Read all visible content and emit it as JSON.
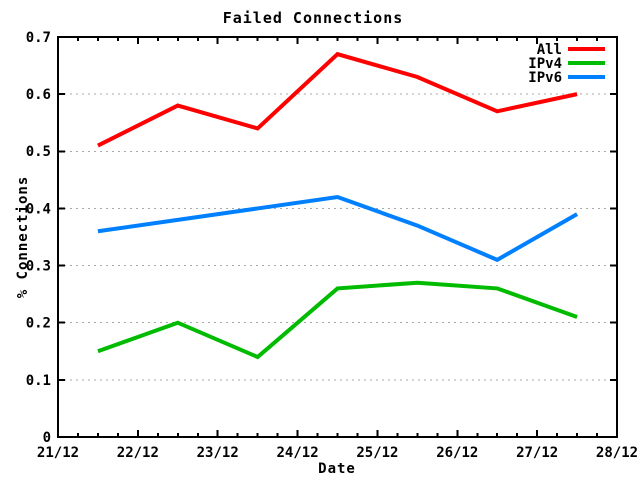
{
  "title": "Failed Connections",
  "colors": {
    "background": "#ffffff",
    "border": "#000000",
    "grid": "#a8a8a8",
    "text": "#000000",
    "series_all": "#ff0000",
    "series_ipv4": "#00bb00",
    "series_ipv6": "#0080ff"
  },
  "chart_data": {
    "type": "line",
    "title": "Failed Connections",
    "xlabel": "Date",
    "ylabel": "% Connections",
    "xlim": [
      21,
      28
    ],
    "ylim": [
      0,
      0.7
    ],
    "grid": "horizontal-dashed",
    "legend_position": "top-right-inside",
    "x_tick_values": [
      21,
      22,
      23,
      24,
      25,
      26,
      27,
      28
    ],
    "x_tick_labels": [
      "21/12",
      "22/12",
      "23/12",
      "24/12",
      "25/12",
      "26/12",
      "27/12",
      "28/12"
    ],
    "x_minor_step": 0.25,
    "y_tick_values": [
      0,
      0.1,
      0.2,
      0.3,
      0.4,
      0.5,
      0.6,
      0.7
    ],
    "y_tick_labels": [
      "0",
      "0.1",
      "0.2",
      "0.3",
      "0.4",
      "0.5",
      "0.6",
      "0.7"
    ],
    "x": [
      21.5,
      22.5,
      23.5,
      24.5,
      25.5,
      26.5,
      27.5
    ],
    "series": [
      {
        "name": "All",
        "color": "#ff0000",
        "values": [
          0.51,
          0.58,
          0.54,
          0.67,
          0.63,
          0.57,
          0.6
        ]
      },
      {
        "name": "IPv4",
        "color": "#00bb00",
        "values": [
          0.15,
          0.2,
          0.14,
          0.26,
          0.27,
          0.26,
          0.21
        ]
      },
      {
        "name": "IPv6",
        "color": "#0080ff",
        "values": [
          0.36,
          0.38,
          0.4,
          0.42,
          0.37,
          0.31,
          0.39
        ]
      }
    ]
  }
}
